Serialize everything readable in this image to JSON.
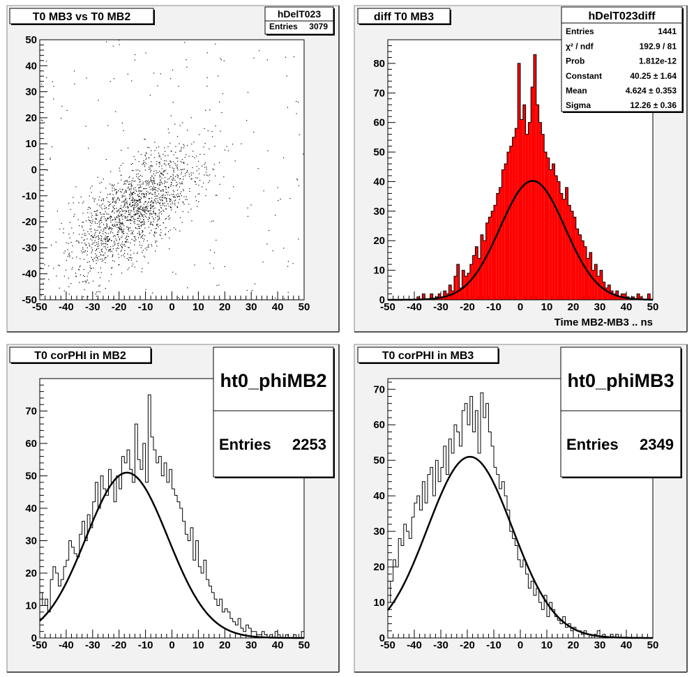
{
  "chart_data": [
    {
      "type": "scatter",
      "title": "T0 MB3 vs T0 MB2",
      "stats": {
        "name": "hDelT023",
        "rows": [
          {
            "label": "Entries",
            "value": "3079"
          }
        ]
      },
      "xlim": [
        -50,
        50
      ],
      "ylim": [
        -50,
        50
      ],
      "x_ticks": [
        -50,
        -40,
        -30,
        -20,
        -10,
        0,
        10,
        20,
        30,
        40,
        50
      ],
      "y_ticks": [
        -50,
        -40,
        -30,
        -20,
        -10,
        0,
        10,
        20,
        30,
        40,
        50
      ],
      "entries": 3079,
      "correlation_center": [
        -14,
        -15
      ],
      "xlabel": "",
      "ylabel": ""
    },
    {
      "type": "bar",
      "title": "diff T0 MB3",
      "stats": {
        "name": "hDelT023diff",
        "rows": [
          {
            "label": "Entries",
            "value": "1441"
          },
          {
            "label": "χ² / ndf",
            "value": "192.9 / 81"
          },
          {
            "label": "Prob",
            "value": "1.812e-12"
          },
          {
            "label": "Constant",
            "value": "40.25 ± 1.64"
          },
          {
            "label": "Mean",
            "value": "4.624 ± 0.353"
          },
          {
            "label": "Sigma",
            "value": "12.26 ± 0.36"
          }
        ]
      },
      "xlim": [
        -50,
        50
      ],
      "ylim": [
        0,
        88
      ],
      "x_ticks": [
        -50,
        -40,
        -30,
        -20,
        -10,
        0,
        10,
        20,
        30,
        40,
        50
      ],
      "y_ticks": [
        0,
        10,
        20,
        30,
        40,
        50,
        60,
        70,
        80
      ],
      "xlabel": "Time MB2-MB3  ..  ns",
      "ylabel": "",
      "fill_color": "#ff0000",
      "bin_edges_start": -50,
      "bin_width": 1,
      "values": [
        0,
        0,
        0,
        0,
        0,
        0,
        0,
        0,
        0,
        0,
        0,
        1,
        0,
        2,
        0,
        0,
        2,
        0,
        1,
        2,
        1,
        3,
        2,
        5,
        3,
        8,
        12,
        4,
        10,
        8,
        9,
        12,
        15,
        18,
        14,
        22,
        20,
        26,
        28,
        30,
        32,
        36,
        38,
        44,
        46,
        50,
        52,
        55,
        58,
        80,
        61,
        66,
        56,
        60,
        72,
        83,
        66,
        60,
        56,
        50,
        48,
        44,
        46,
        42,
        40,
        36,
        34,
        38,
        32,
        30,
        28,
        24,
        22,
        20,
        18,
        14,
        16,
        10,
        12,
        8,
        10,
        6,
        4,
        5,
        3,
        2,
        3,
        1,
        2,
        2,
        1,
        0,
        1,
        0,
        2,
        1,
        0,
        0,
        2,
        0
      ],
      "fit": {
        "constant": 40.25,
        "mean": 4.624,
        "sigma": 12.26
      }
    },
    {
      "type": "bar",
      "title": "T0 corPHI in MB2",
      "stats": {
        "name": "ht0_phiMB2",
        "rows": [
          {
            "label": "Entries",
            "value": "2253"
          }
        ]
      },
      "xlim": [
        -50,
        50
      ],
      "ylim": [
        0,
        80
      ],
      "x_ticks": [
        -50,
        -40,
        -30,
        -20,
        -10,
        0,
        10,
        20,
        30,
        40,
        50
      ],
      "y_ticks": [
        0,
        10,
        20,
        30,
        40,
        50,
        60,
        70
      ],
      "xlabel": "",
      "ylabel": "",
      "bin_edges_start": -50,
      "bin_width": 1,
      "values": [
        14,
        10,
        12,
        8,
        18,
        22,
        20,
        16,
        18,
        22,
        24,
        30,
        28,
        26,
        25,
        32,
        36,
        30,
        38,
        34,
        42,
        48,
        40,
        50,
        46,
        44,
        52,
        48,
        42,
        50,
        46,
        56,
        54,
        58,
        52,
        48,
        66,
        55,
        52,
        60,
        48,
        75,
        62,
        58,
        54,
        56,
        50,
        54,
        48,
        52,
        46,
        44,
        42,
        40,
        36,
        32,
        30,
        34,
        24,
        30,
        22,
        20,
        24,
        18,
        16,
        14,
        12,
        10,
        12,
        8,
        9,
        8,
        6,
        5,
        4,
        6,
        3,
        2,
        4,
        3,
        2,
        2,
        1,
        1,
        2,
        1,
        0,
        1,
        0,
        2,
        1,
        0,
        0,
        1,
        0,
        0,
        1,
        0,
        0,
        2
      ],
      "fit": {
        "constant": 51.0,
        "mean": -17.0,
        "sigma": 15.5
      }
    },
    {
      "type": "bar",
      "title": "T0 corPHI in MB3",
      "stats": {
        "name": "ht0_phiMB3",
        "rows": [
          {
            "label": "Entries",
            "value": "2349"
          }
        ]
      },
      "xlim": [
        -50,
        50
      ],
      "ylim": [
        0,
        73
      ],
      "x_ticks": [
        -50,
        -40,
        -30,
        -20,
        -10,
        0,
        10,
        20,
        30,
        40,
        50
      ],
      "y_ticks": [
        0,
        10,
        20,
        30,
        40,
        50,
        60,
        70
      ],
      "xlabel": "",
      "ylabel": "",
      "bin_edges_start": -50,
      "bin_width": 1,
      "values": [
        10,
        16,
        22,
        20,
        28,
        26,
        32,
        30,
        28,
        34,
        38,
        40,
        36,
        44,
        38,
        46,
        48,
        40,
        50,
        44,
        48,
        54,
        46,
        56,
        52,
        60,
        58,
        54,
        64,
        66,
        60,
        68,
        58,
        64,
        52,
        69,
        62,
        66,
        58,
        54,
        48,
        46,
        42,
        44,
        40,
        36,
        30,
        28,
        26,
        22,
        20,
        22,
        18,
        14,
        16,
        12,
        14,
        10,
        8,
        12,
        6,
        10,
        8,
        6,
        5,
        4,
        6,
        3,
        4,
        2,
        3,
        2,
        2,
        1,
        2,
        1,
        1,
        0,
        1,
        2,
        0,
        1,
        0,
        0,
        1,
        0,
        1,
        0,
        0,
        0,
        0,
        0,
        0,
        0,
        0,
        0,
        0,
        0,
        0,
        0
      ],
      "fit": {
        "constant": 51.0,
        "mean": -19.0,
        "sigma": 16.0
      }
    }
  ]
}
